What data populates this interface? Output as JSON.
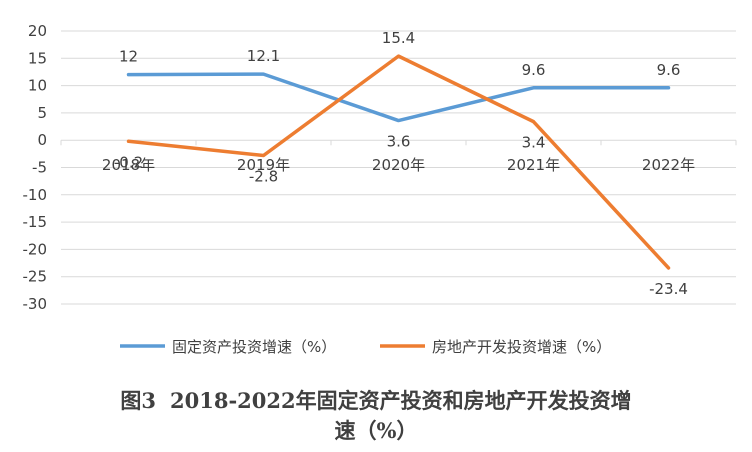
{
  "caption": {
    "figure_no": "图3",
    "title_line1": "2018-2022年固定资产投资和房地产开发投资增",
    "title_line2": "速（%）"
  },
  "chart_data": {
    "type": "line",
    "categories": [
      "2018年",
      "2019年",
      "2020年",
      "2021年",
      "2022年"
    ],
    "series": [
      {
        "name": "固定资产投资增速（%）",
        "values": [
          12,
          12.1,
          3.6,
          9.6,
          9.6
        ],
        "labels": [
          "12",
          "12.1",
          "3.6",
          "9.6",
          "9.6"
        ],
        "color": "#5B9BD5"
      },
      {
        "name": "房地产开发投资增速（%）",
        "values": [
          -0.2,
          -2.8,
          15.4,
          3.4,
          -23.4
        ],
        "labels": [
          "-0.2",
          "-2.8",
          "15.4",
          "3.4",
          "-23.4"
        ],
        "color": "#ED7D31"
      }
    ],
    "yticks": [
      20,
      15,
      10,
      5,
      0,
      -5,
      -10,
      -15,
      -20,
      -25,
      -30
    ],
    "ylim": [
      -30,
      20
    ],
    "grid": true,
    "legend": "bottom"
  }
}
